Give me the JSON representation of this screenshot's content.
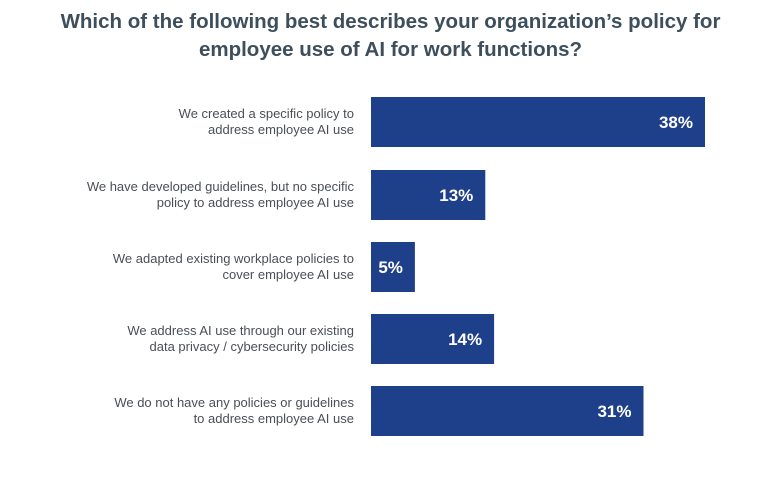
{
  "chart_data": {
    "type": "bar",
    "orientation": "horizontal",
    "title_lines": [
      "Which of the following best describes your organization’s policy for",
      "employee use of AI for work functions?"
    ],
    "categories": [
      [
        "We created a specific policy to",
        "address employee AI use"
      ],
      [
        "We have developed guidelines, but no specific",
        "policy to address employee AI use"
      ],
      [
        "We adapted existing workplace policies to",
        "cover employee AI use"
      ],
      [
        "We address AI use through our existing",
        "data privacy / cybersecurity policies"
      ],
      [
        "We do not have any policies or guidelines",
        "to address employee AI use"
      ]
    ],
    "values": [
      38,
      13,
      5,
      14,
      31
    ],
    "value_labels": [
      "38%",
      "13%",
      "5%",
      "14%",
      "31%"
    ],
    "unit": "%",
    "xlim": [
      0,
      40
    ],
    "grid": false,
    "legend": "none",
    "bar_color": "#1e3f8a",
    "value_label_color": "#ffffff"
  }
}
